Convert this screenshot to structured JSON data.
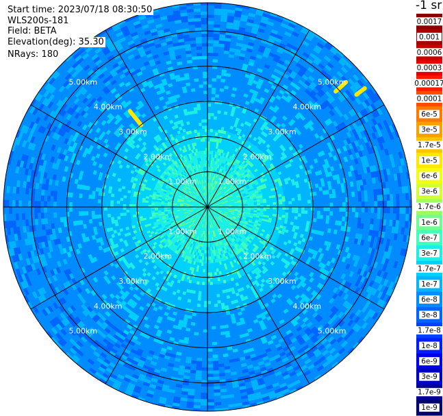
{
  "header": {
    "start_time": "Start time: 2023/07/18 08:30:50",
    "instrument": "WLS200s-181",
    "field": "Field: BETA",
    "elevation": "Elevation(deg): 35.30",
    "nrays": "NRays: 180"
  },
  "colorbar": {
    "unit_label": "-1 sr",
    "ticks": [
      "0.0017",
      "0.001",
      "0.0006",
      "0.0003",
      "0.00017",
      "0.0001",
      "6e-5",
      "3e-5",
      "1.7e-5",
      "1e-5",
      "6e-6",
      "3e-6",
      "1.7e-6",
      "1e-6",
      "6e-7",
      "3e-7",
      "1.7e-7",
      "1e-7",
      "6e-8",
      "3e-8",
      "1.7e-8",
      "1e-8",
      "6e-9",
      "3e-9",
      "1.7e-9",
      "1e-9"
    ],
    "colors": [
      "#8b0000",
      "#a80000",
      "#c80000",
      "#e80000",
      "#ff1a00",
      "#ff4c00",
      "#ff7a00",
      "#ff9e00",
      "#ffc400",
      "#ffe800",
      "#f4ff10",
      "#d2ff32",
      "#9eff60",
      "#70ff8c",
      "#44ffb8",
      "#1cf0e6",
      "#00d2ff",
      "#00b4ff",
      "#008cff",
      "#0064ff",
      "#0040ff",
      "#001cff",
      "#0000e6",
      "#0000c0",
      "#000096",
      "#00006e"
    ]
  },
  "chart_data": {
    "type": "heatmap",
    "projection": "polar-ppi",
    "field": "BETA",
    "nrays": 180,
    "max_range_km": 5.8,
    "range_ring_labels": [
      "1.00km",
      "2.00km",
      "3.00km",
      "4.00km",
      "5.00km"
    ],
    "range_ring_values_km": [
      1,
      2,
      3,
      4,
      5
    ],
    "spoke_angles_deg": [
      0,
      30,
      60,
      90,
      120,
      150,
      180,
      210,
      240,
      270,
      300,
      330
    ],
    "background_color": "#1a8cff",
    "profile": [
      {
        "range_km": 0.0,
        "level": "6e-7"
      },
      {
        "range_km": 0.9,
        "level": "3e-7"
      },
      {
        "range_km": 1.6,
        "level": "3e-7"
      },
      {
        "range_km": 2.2,
        "level": "1.7e-7"
      },
      {
        "range_km": 3.0,
        "level": "1e-7"
      },
      {
        "range_km": 4.2,
        "level": "6e-8"
      },
      {
        "range_km": 5.8,
        "level": "6e-8"
      }
    ],
    "features": [
      {
        "azimuth_deg": 321,
        "range_km_from": 3.0,
        "range_km_to": 3.5,
        "level": "1e-5"
      },
      {
        "azimuth_deg": 48,
        "range_km_from": 4.9,
        "range_km_to": 5.3,
        "level": "1e-5"
      },
      {
        "azimuth_deg": 53,
        "range_km_from": 5.3,
        "range_km_to": 5.6,
        "level": "1e-5"
      }
    ]
  }
}
